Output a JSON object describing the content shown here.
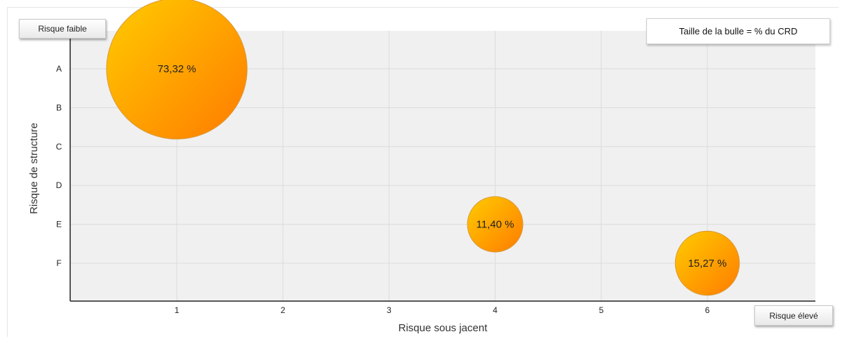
{
  "chart_data": {
    "type": "scatter",
    "subtype": "bubble",
    "xlabel": "Risque sous jacent",
    "ylabel": "Risque de structure",
    "x_ticks": [
      "1",
      "2",
      "3",
      "4",
      "5",
      "6"
    ],
    "y_ticks": [
      "A",
      "B",
      "C",
      "D",
      "E",
      "F"
    ],
    "xlim": [
      0,
      7
    ],
    "points": [
      {
        "x": 1,
        "y": "A",
        "size_pct": 73.32,
        "label": "73,32 %"
      },
      {
        "x": 4,
        "y": "E",
        "size_pct": 11.4,
        "label": "11,40 %"
      },
      {
        "x": 6,
        "y": "F",
        "size_pct": 15.27,
        "label": "15,27 %"
      }
    ],
    "grid": true,
    "legend_note": "Taille de la bulle = % du CRD",
    "corner_labels": {
      "low": "Risque faible",
      "high": "Risque élevé"
    },
    "colors": {
      "bubble_start": "#ffcc00",
      "bubble_end": "#ff7b00",
      "plot_bg": "#f0f0f0",
      "grid": "#dcdcdc"
    }
  }
}
